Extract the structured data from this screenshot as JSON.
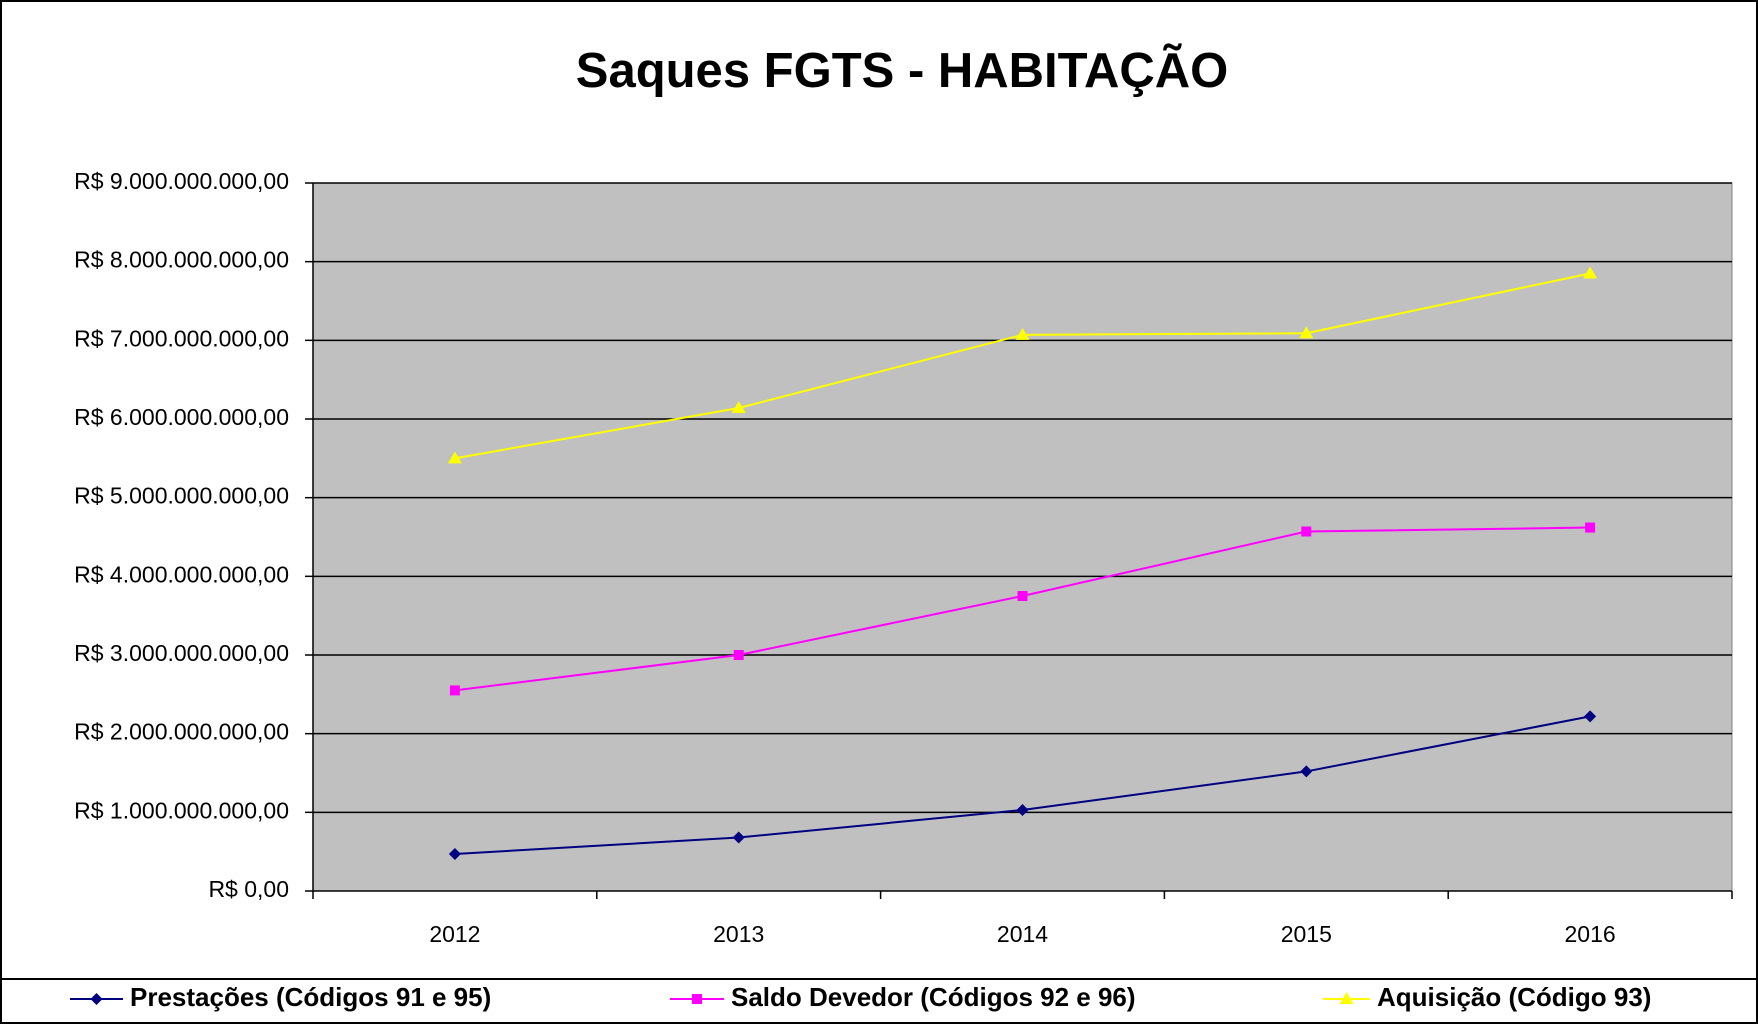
{
  "chart_data": {
    "type": "line",
    "title": "Saques FGTS - HABITAÇÃO",
    "categories": [
      "2012",
      "2013",
      "2014",
      "2015",
      "2016"
    ],
    "series": [
      {
        "name": "Prestações (Códigos 91 e 95)",
        "color": "#000080",
        "marker": "diamond",
        "values": [
          470000000,
          680000000,
          1030000000,
          1520000000,
          2220000000
        ]
      },
      {
        "name": "Saldo Devedor (Códigos 92 e 96)",
        "color": "#ff00ff",
        "marker": "square",
        "values": [
          2550000000,
          3000000000,
          3750000000,
          4570000000,
          4620000000
        ]
      },
      {
        "name": "Aquisição (Código 93)",
        "color": "#ffff00",
        "marker": "triangle",
        "values": [
          5500000000,
          6140000000,
          7070000000,
          7090000000,
          7850000000
        ]
      }
    ],
    "ylim": [
      0,
      9000000000
    ],
    "yticks": [
      {
        "value": 0,
        "label": "R$ 0,00"
      },
      {
        "value": 1000000000,
        "label": "R$ 1.000.000.000,00"
      },
      {
        "value": 2000000000,
        "label": "R$ 2.000.000.000,00"
      },
      {
        "value": 3000000000,
        "label": "R$ 3.000.000.000,00"
      },
      {
        "value": 4000000000,
        "label": "R$ 4.000.000.000,00"
      },
      {
        "value": 5000000000,
        "label": "R$ 5.000.000.000,00"
      },
      {
        "value": 6000000000,
        "label": "R$ 6.000.000.000,00"
      },
      {
        "value": 7000000000,
        "label": "R$ 7.000.000.000,00"
      },
      {
        "value": 8000000000,
        "label": "R$ 8.000.000.000,00"
      },
      {
        "value": 9000000000,
        "label": "R$ 9.000.000.000,00"
      }
    ],
    "grid": true,
    "plot_background": "#c0c0c0",
    "legend": "bottom"
  }
}
